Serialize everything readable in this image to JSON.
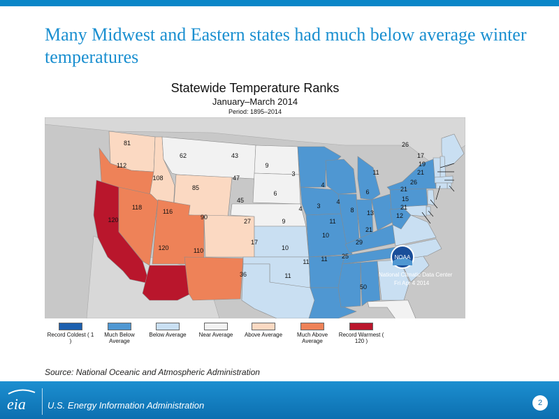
{
  "slide": {
    "title": "Many Midwest and Eastern states had much below average winter temperatures",
    "source": "Source: National Oceanic and Atmospheric Administration",
    "footer": "U.S. Energy Information Administration",
    "page_number": "2",
    "logo_text": "eia"
  },
  "map": {
    "title": "Statewide Temperature Ranks",
    "subtitle": "January–March 2014",
    "period": "Period: 1895–2014",
    "noaa": {
      "badge_text": "NOAA",
      "center": "National Climatic Data Center",
      "date": "Fri Apr  4 2014"
    },
    "categories": {
      "record_coldest": "#1c5fae",
      "much_below": "#4f97d2",
      "below": "#c9dff2",
      "near": "#f2f2f2",
      "above": "#fbd9c2",
      "much_above": "#ee8258",
      "record_warmest": "#b9162c"
    },
    "legend": [
      {
        "label": "Record Coldest ( 1 )",
        "color": "#1c5fae"
      },
      {
        "label": "Much Below Average",
        "color": "#4f97d2"
      },
      {
        "label": "Below Average",
        "color": "#c9dff2"
      },
      {
        "label": "Near Average",
        "color": "#f2f2f2"
      },
      {
        "label": "Above Average",
        "color": "#fbd9c2"
      },
      {
        "label": "Much Above Average",
        "color": "#ee8258"
      },
      {
        "label": "Record Warmest ( 120 )",
        "color": "#b9162c"
      }
    ],
    "state_ranks": [
      {
        "state": "WA",
        "rank": "81",
        "category": "above"
      },
      {
        "state": "OR",
        "rank": "112",
        "category": "much_above"
      },
      {
        "state": "CA",
        "rank": "120",
        "category": "record_warmest"
      },
      {
        "state": "ID",
        "rank": "108",
        "category": "above"
      },
      {
        "state": "NV",
        "rank": "118",
        "category": "much_above"
      },
      {
        "state": "MT",
        "rank": "62",
        "category": "near"
      },
      {
        "state": "WY",
        "rank": "85",
        "category": "above"
      },
      {
        "state": "UT",
        "rank": "116",
        "category": "much_above"
      },
      {
        "state": "AZ",
        "rank": "120",
        "category": "record_warmest"
      },
      {
        "state": "CO",
        "rank": "90",
        "category": "above"
      },
      {
        "state": "NM",
        "rank": "110",
        "category": "much_above"
      },
      {
        "state": "ND",
        "rank": "43",
        "category": "near"
      },
      {
        "state": "SD",
        "rank": "47",
        "category": "near"
      },
      {
        "state": "NE",
        "rank": "45",
        "category": "near"
      },
      {
        "state": "KS",
        "rank": "27",
        "category": "below"
      },
      {
        "state": "OK",
        "rank": "17",
        "category": "below"
      },
      {
        "state": "TX",
        "rank": "36",
        "category": "below"
      },
      {
        "state": "MN",
        "rank": "9",
        "category": "much_below"
      },
      {
        "state": "IA",
        "rank": "6",
        "category": "much_below"
      },
      {
        "state": "MO",
        "rank": "9",
        "category": "much_below"
      },
      {
        "state": "AR",
        "rank": "10",
        "category": "much_below"
      },
      {
        "state": "LA",
        "rank": "11",
        "category": "much_below"
      },
      {
        "state": "WI",
        "rank": "3",
        "category": "much_below"
      },
      {
        "state": "MI",
        "rank": "4",
        "category": "much_below"
      },
      {
        "state": "IL",
        "rank": "4",
        "category": "much_below"
      },
      {
        "state": "IN",
        "rank": "3",
        "category": "much_below"
      },
      {
        "state": "OH",
        "rank": "4",
        "category": "much_below"
      },
      {
        "state": "KY",
        "rank": "11",
        "category": "much_below"
      },
      {
        "state": "TN",
        "rank": "10",
        "category": "much_below"
      },
      {
        "state": "MS",
        "rank": "11",
        "category": "much_below"
      },
      {
        "state": "AL",
        "rank": "11",
        "category": "much_below"
      },
      {
        "state": "GA",
        "rank": "25",
        "category": "below"
      },
      {
        "state": "FL",
        "rank": "50",
        "category": "near"
      },
      {
        "state": "SC",
        "rank": "29",
        "category": "below"
      },
      {
        "state": "NC",
        "rank": "21",
        "category": "below"
      },
      {
        "state": "VA",
        "rank": "13",
        "category": "below"
      },
      {
        "state": "WV",
        "rank": "8",
        "category": "much_below"
      },
      {
        "state": "PA",
        "rank": "6",
        "category": "much_below"
      },
      {
        "state": "NY",
        "rank": "11",
        "category": "much_below"
      },
      {
        "state": "ME",
        "rank": "26",
        "category": "below"
      },
      {
        "state": "NH",
        "rank": "17",
        "category": "below"
      },
      {
        "state": "VT",
        "rank": "19",
        "category": "below"
      },
      {
        "state": "MA",
        "rank": "21",
        "category": "below"
      },
      {
        "state": "RI",
        "rank": "26",
        "category": "below"
      },
      {
        "state": "CT",
        "rank": "21",
        "category": "below"
      },
      {
        "state": "NJ",
        "rank": "15",
        "category": "below"
      },
      {
        "state": "DE",
        "rank": "21",
        "category": "below"
      },
      {
        "state": "MD",
        "rank": "12",
        "category": "below"
      }
    ]
  }
}
